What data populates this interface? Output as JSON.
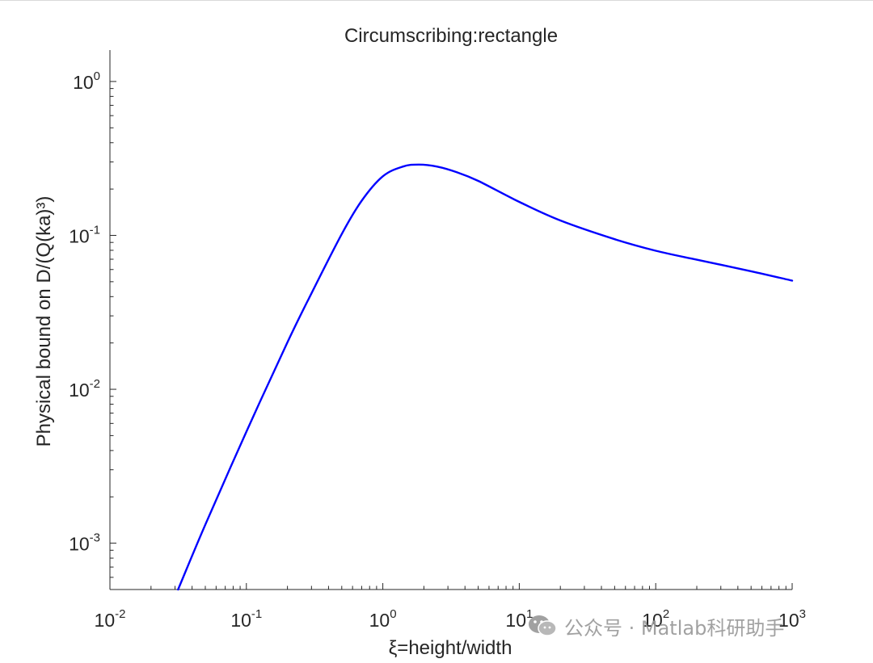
{
  "chart_data": {
    "type": "line",
    "title": "Circumscribing:rectangle",
    "xlabel": "ξ=height/width",
    "ylabel": "Physical bound on D/(Q(ka)³)",
    "xscale": "log",
    "yscale": "log",
    "xlim": [
      0.01,
      1000
    ],
    "ylim": [
      0.0005,
      1.6
    ],
    "grid": false,
    "legend": "none",
    "x_ticks": [
      {
        "base": "10",
        "exp": "-2",
        "value": 0.01
      },
      {
        "base": "10",
        "exp": "-1",
        "value": 0.1
      },
      {
        "base": "10",
        "exp": "0",
        "value": 1
      },
      {
        "base": "10",
        "exp": "1",
        "value": 10
      },
      {
        "base": "10",
        "exp": "2",
        "value": 100
      },
      {
        "base": "10",
        "exp": "3",
        "value": 1000
      }
    ],
    "y_ticks": [
      {
        "base": "10",
        "exp": "-3",
        "value": 0.001
      },
      {
        "base": "10",
        "exp": "-2",
        "value": 0.01
      },
      {
        "base": "10",
        "exp": "-1",
        "value": 0.1
      },
      {
        "base": "10",
        "exp": "0",
        "value": 1
      }
    ],
    "series": [
      {
        "color": "#0000ff",
        "x": [
          0.0316,
          0.05,
          0.1,
          0.2,
          0.3,
          0.5,
          0.7,
          1.0,
          1.4,
          1.84,
          2.5,
          3.5,
          5.0,
          10,
          20,
          50,
          100,
          200,
          500,
          1000
        ],
        "y": [
          0.0005,
          0.00132,
          0.0053,
          0.0202,
          0.042,
          0.102,
          0.168,
          0.242,
          0.28,
          0.2885,
          0.28,
          0.257,
          0.226,
          0.165,
          0.125,
          0.0945,
          0.0795,
          0.0695,
          0.0585,
          0.0508
        ]
      }
    ]
  },
  "watermark": {
    "icon": "wechat-icon",
    "text": "公众号 · Matlab科研助手"
  }
}
